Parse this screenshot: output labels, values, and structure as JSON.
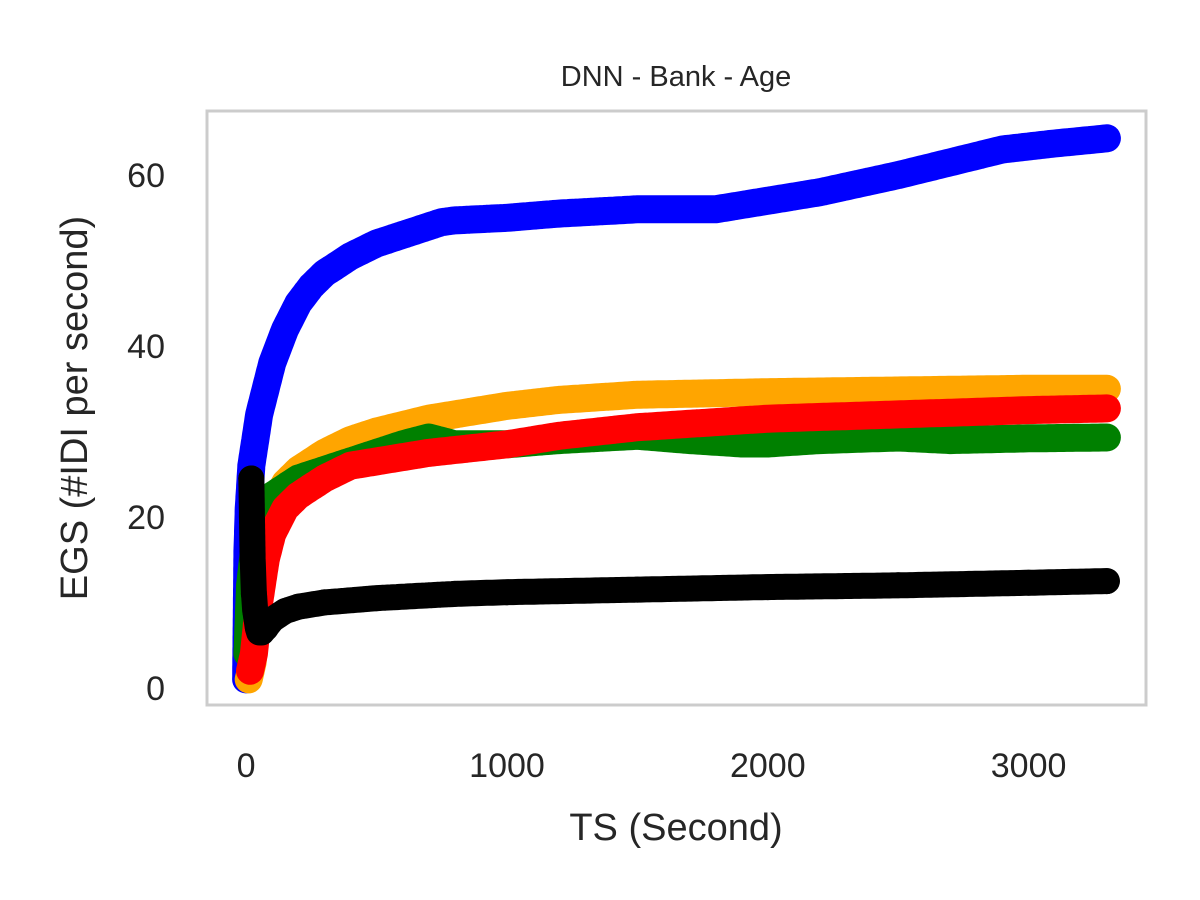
{
  "chart_data": {
    "type": "scatter",
    "title": "DNN - Bank - Age",
    "xlabel": "TS (Second)",
    "ylabel": "EGS (#IDI  per second)",
    "xlim": [
      -150,
      3450
    ],
    "ylim": [
      -2,
      67.5
    ],
    "xticks": [
      0,
      1000,
      2000,
      3000
    ],
    "yticks": [
      0,
      20,
      40,
      60
    ],
    "grid": false,
    "legend": "none",
    "series": [
      {
        "color": "#0000ff",
        "x": [
          0,
          5,
          10,
          20,
          35,
          50,
          75,
          100,
          150,
          200,
          250,
          300,
          400,
          500,
          600,
          700,
          750,
          800,
          1000,
          1200,
          1500,
          1800,
          2000,
          2200,
          2500,
          2700,
          2900,
          3100,
          3300
        ],
        "y": [
          1,
          16,
          21,
          26,
          29,
          32,
          35,
          38,
          42,
          45,
          47,
          48.5,
          50.5,
          52,
          53,
          54,
          54.5,
          54.7,
          55,
          55.5,
          56,
          56,
          57,
          58,
          60,
          61.5,
          63,
          63.7,
          64.3
        ]
      },
      {
        "color": "#ffa500",
        "x": [
          10,
          25,
          50,
          100,
          150,
          200,
          250,
          300,
          400,
          500,
          700,
          1000,
          1200,
          1500,
          2000,
          2500,
          3000,
          3300
        ],
        "y": [
          1,
          3,
          13,
          21,
          24,
          25.5,
          26.5,
          27.5,
          29,
          30,
          31.5,
          33,
          33.7,
          34.3,
          34.6,
          34.8,
          35,
          35
        ]
      },
      {
        "color": "#008000",
        "x": [
          5,
          15,
          30,
          50,
          75,
          100,
          150,
          200,
          300,
          400,
          500,
          600,
          700,
          800,
          1000,
          1200,
          1500,
          1700,
          1900,
          2000,
          2200,
          2500,
          2700,
          3000,
          3300
        ],
        "y": [
          4,
          12,
          16,
          20,
          21,
          22.5,
          23.5,
          24.5,
          25.5,
          26.5,
          27.5,
          28.5,
          29.3,
          28.5,
          28.5,
          29,
          29.5,
          29,
          28.6,
          28.6,
          29,
          29.3,
          29,
          29.2,
          29.3
        ]
      },
      {
        "color": "#ff0000",
        "x": [
          15,
          30,
          50,
          75,
          100,
          150,
          200,
          300,
          400,
          500,
          700,
          1000,
          1200,
          1500,
          2000,
          2500,
          3000,
          3300
        ],
        "y": [
          2,
          4,
          10,
          15,
          18,
          21,
          22.5,
          24.5,
          26,
          26.5,
          27.5,
          28.5,
          29.5,
          30.5,
          31.5,
          32,
          32.5,
          32.7
        ]
      },
      {
        "color": "#000000",
        "x": [
          20,
          25,
          30,
          35,
          40,
          45,
          50,
          60,
          75,
          100,
          150,
          200,
          300,
          500,
          800,
          1000,
          1500,
          2000,
          2500,
          3000,
          3300
        ],
        "y": [
          24.5,
          15,
          11,
          9,
          8,
          7,
          6.5,
          6.5,
          7,
          8,
          9,
          9.5,
          10,
          10.5,
          11,
          11.2,
          11.5,
          11.8,
          12,
          12.3,
          12.5
        ]
      }
    ]
  }
}
